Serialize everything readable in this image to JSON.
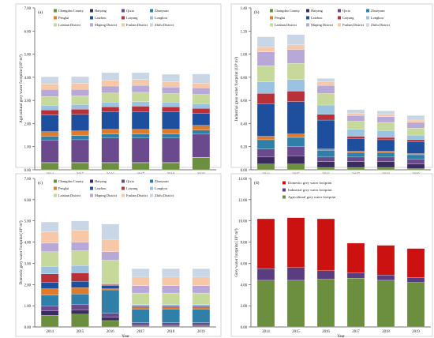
{
  "figure_name": "grey water footprint figure",
  "legend_regions": [
    "Changdao County",
    "Haiyang",
    "Qixia",
    "Zhaoyuan",
    "Penglai",
    "Laizhou",
    "Laiyang",
    "Longkou",
    "Laishan District",
    "Muping District",
    "Fushan District",
    "Zhifu District"
  ],
  "colors": {
    "regions": [
      "#6b8f3e",
      "#3b2b5e",
      "#6a4a8c",
      "#2f7fa8",
      "#e07b2a",
      "#1e4e9e",
      "#b83038",
      "#9bc2e0",
      "#c6d99a",
      "#b8a8d8",
      "#f6c8a8",
      "#c9d6e6"
    ],
    "agri": "#6b8f3e",
    "indus": "#5a3d7e",
    "dom": "#cc1111"
  },
  "chart_data": [
    {
      "type": "bar",
      "stacked": true,
      "panel_label": "(a)",
      "title": "",
      "xlabel": "Year",
      "ylabel": "Agricultural grey water footprint (10^8 m³)",
      "categories": [
        "2014",
        "2015",
        "2016",
        "2017",
        "2018",
        "2019"
      ],
      "ylim": [
        0,
        7
      ],
      "yticks": [
        0,
        1,
        2,
        3,
        4,
        5,
        6,
        7
      ],
      "ytick_labels": [
        "0.00",
        "1.00",
        "2.00",
        "3.00",
        "4.00",
        "5.00",
        "6.00",
        "7.00"
      ],
      "legend_position": "top",
      "series": [
        {
          "name": "Changdao County",
          "values": [
            0.3,
            0.3,
            0.3,
            0.3,
            0.3,
            0.52
          ]
        },
        {
          "name": "Haiyang",
          "values": [
            0.02,
            0.02,
            0.02,
            0.02,
            0.02,
            0.02
          ]
        },
        {
          "name": "Qixia",
          "values": [
            0.95,
            0.98,
            1.05,
            1.05,
            1.05,
            1.0
          ]
        },
        {
          "name": "Zhaoyuan",
          "values": [
            0.18,
            0.18,
            0.18,
            0.18,
            0.18,
            0.18
          ]
        },
        {
          "name": "Penglai",
          "values": [
            0.2,
            0.2,
            0.2,
            0.2,
            0.2,
            0.2
          ]
        },
        {
          "name": "Laizhou",
          "values": [
            0.72,
            0.72,
            0.75,
            0.75,
            0.75,
            0.52
          ]
        },
        {
          "name": "Laiyang",
          "values": [
            0.22,
            0.22,
            0.22,
            0.25,
            0.22,
            0.22
          ]
        },
        {
          "name": "Longkou",
          "values": [
            0.2,
            0.2,
            0.2,
            0.2,
            0.2,
            0.2
          ]
        },
        {
          "name": "Laishan District",
          "values": [
            0.38,
            0.38,
            0.4,
            0.4,
            0.38,
            0.4
          ]
        },
        {
          "name": "Muping District",
          "values": [
            0.3,
            0.28,
            0.3,
            0.3,
            0.28,
            0.28
          ]
        },
        {
          "name": "Fushan District",
          "values": [
            0.25,
            0.25,
            0.25,
            0.25,
            0.22,
            0.2
          ]
        },
        {
          "name": "Zhifu District",
          "values": [
            0.3,
            0.3,
            0.33,
            0.3,
            0.33,
            0.4
          ]
        }
      ]
    },
    {
      "type": "bar",
      "stacked": true,
      "panel_label": "(b)",
      "title": "",
      "xlabel": "Year",
      "ylabel": "Industrial grey water footprint (10^8 m³)",
      "categories": [
        "2014",
        "2015",
        "2016",
        "2017",
        "2018",
        "2019"
      ],
      "ylim": [
        0,
        1.4
      ],
      "yticks": [
        0,
        0.2,
        0.4,
        0.6,
        0.8,
        1.0,
        1.2,
        1.4
      ],
      "ytick_labels": [
        "0.00",
        "0.20",
        "0.40",
        "0.60",
        "0.80",
        "1.00",
        "1.20",
        "1.40"
      ],
      "legend_position": "top",
      "series": [
        {
          "name": "Changdao County",
          "values": [
            0.05,
            0.05,
            0.02,
            0.02,
            0.02,
            0.01
          ]
        },
        {
          "name": "Haiyang",
          "values": [
            0.06,
            0.07,
            0.05,
            0.05,
            0.05,
            0.04
          ]
        },
        {
          "name": "Qixia",
          "values": [
            0.07,
            0.08,
            0.04,
            0.04,
            0.04,
            0.04
          ]
        },
        {
          "name": "Zhaoyuan",
          "values": [
            0.08,
            0.08,
            0.06,
            0.04,
            0.04,
            0.04
          ]
        },
        {
          "name": "Penglai",
          "values": [
            0.03,
            0.03,
            0.01,
            0.01,
            0.01,
            0.01
          ]
        },
        {
          "name": "Laizhou",
          "values": [
            0.28,
            0.28,
            0.25,
            0.11,
            0.1,
            0.1
          ]
        },
        {
          "name": "Laiyang",
          "values": [
            0.09,
            0.09,
            0.05,
            0.02,
            0.02,
            0.02
          ]
        },
        {
          "name": "Longkou",
          "values": [
            0.1,
            0.1,
            0.08,
            0.06,
            0.06,
            0.04
          ]
        },
        {
          "name": "Laishan District",
          "values": [
            0.14,
            0.14,
            0.1,
            0.07,
            0.07,
            0.06
          ]
        },
        {
          "name": "Muping District",
          "values": [
            0.12,
            0.12,
            0.07,
            0.05,
            0.05,
            0.05
          ]
        },
        {
          "name": "Fushan District",
          "values": [
            0.04,
            0.04,
            0.03,
            0.02,
            0.02,
            0.02
          ]
        },
        {
          "name": "Zhifu District",
          "values": [
            0.09,
            0.09,
            0.03,
            0.03,
            0.03,
            0.04
          ]
        }
      ]
    },
    {
      "type": "bar",
      "stacked": true,
      "panel_label": "(c)",
      "title": "",
      "xlabel": "Year",
      "ylabel": "Domestic grey water footprint (10^8 m³)",
      "categories": [
        "2014",
        "2015",
        "2016",
        "2017",
        "2018",
        "2019"
      ],
      "ylim": [
        0,
        7
      ],
      "yticks": [
        0,
        1,
        2,
        3,
        4,
        5,
        6,
        7
      ],
      "ytick_labels": [
        "0.00",
        "1.00",
        "2.00",
        "3.00",
        "4.00",
        "5.00",
        "6.00",
        "7.00"
      ],
      "legend_position": "top",
      "series": [
        {
          "name": "Changdao County",
          "values": [
            0.55,
            0.6,
            0.3,
            0.05,
            0.05,
            0.05
          ]
        },
        {
          "name": "Haiyang",
          "values": [
            0.2,
            0.2,
            0.15,
            0.05,
            0.05,
            0.05
          ]
        },
        {
          "name": "Qixia",
          "values": [
            0.25,
            0.25,
            0.2,
            0.1,
            0.1,
            0.1
          ]
        },
        {
          "name": "Zhaoyuan",
          "values": [
            0.5,
            0.5,
            1.1,
            0.65,
            0.65,
            0.65
          ]
        },
        {
          "name": "Penglai",
          "values": [
            0.3,
            0.3,
            0.05,
            0.05,
            0.05,
            0.05
          ]
        },
        {
          "name": "Laizhou",
          "values": [
            0.3,
            0.3,
            0.15,
            0.05,
            0.05,
            0.05
          ]
        },
        {
          "name": "Laiyang",
          "values": [
            0.4,
            0.4,
            0.05,
            0.05,
            0.05,
            0.05
          ]
        },
        {
          "name": "Longkou",
          "values": [
            0.35,
            0.35,
            0.05,
            0.05,
            0.05,
            0.05
          ]
        },
        {
          "name": "Laishan District",
          "values": [
            0.7,
            0.7,
            1.1,
            0.55,
            0.55,
            0.55
          ]
        },
        {
          "name": "Muping District",
          "values": [
            0.4,
            0.4,
            0.4,
            0.35,
            0.35,
            0.35
          ]
        },
        {
          "name": "Fushan District",
          "values": [
            0.55,
            0.55,
            0.55,
            0.4,
            0.4,
            0.4
          ]
        },
        {
          "name": "Zhifu District",
          "values": [
            0.45,
            0.45,
            0.75,
            0.4,
            0.4,
            0.4
          ]
        }
      ]
    },
    {
      "type": "bar",
      "stacked": true,
      "panel_label": "(d)",
      "title": "",
      "xlabel": "Year",
      "ylabel": "Grey water footprint (10^8 m³)",
      "categories": [
        "2014",
        "2015",
        "2016",
        "2017",
        "2018",
        "2019"
      ],
      "ylim": [
        0,
        14
      ],
      "yticks": [
        0,
        2,
        4,
        6,
        8,
        10,
        12,
        14
      ],
      "ytick_labels": [
        "0.00",
        "2.00",
        "4.00",
        "6.00",
        "8.00",
        "10.00",
        "12.00",
        "14.00"
      ],
      "legend_position": "top",
      "series": [
        {
          "name": "Agricultural grey water footprint",
          "values": [
            4.4,
            4.4,
            4.5,
            4.6,
            4.4,
            4.2
          ]
        },
        {
          "name": "Industrial grey water footprint",
          "values": [
            1.1,
            1.2,
            0.8,
            0.5,
            0.5,
            0.45
          ]
        },
        {
          "name": "Domestic grey water footprint",
          "values": [
            4.7,
            4.7,
            4.9,
            2.8,
            2.8,
            2.75
          ]
        }
      ],
      "legend_order": [
        2,
        1,
        0
      ]
    }
  ]
}
